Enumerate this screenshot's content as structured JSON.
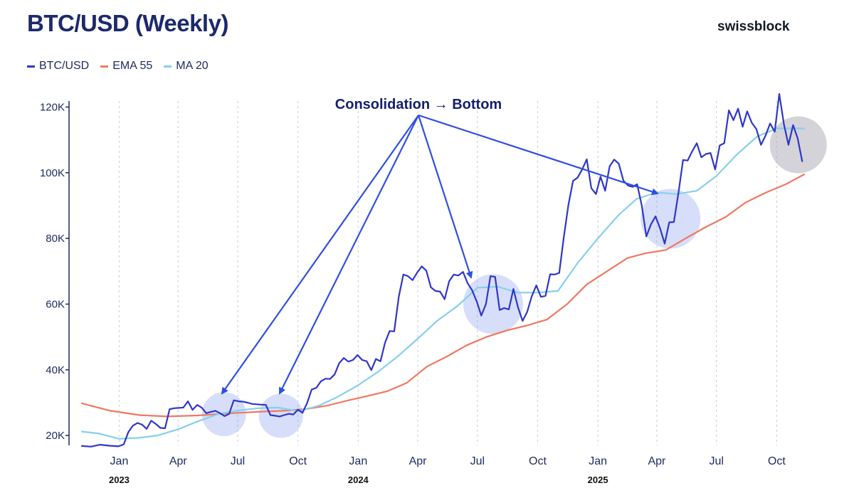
{
  "header": {
    "title": "BTC/USD (Weekly)",
    "brand": "swissblock"
  },
  "legend": [
    {
      "label": "BTC/USD",
      "color": "#2f36c9"
    },
    {
      "label": "EMA 55",
      "color": "#f07860"
    },
    {
      "label": "MA 20",
      "color": "#86cfee"
    }
  ],
  "annotation": {
    "label": "Consolidation → Bottom",
    "targets": [
      "2023-06-10",
      "2023-09-05",
      "2024-07-25",
      "2025-04-22"
    ]
  },
  "chart_data": {
    "type": "line",
    "title": "BTC/USD (Weekly)",
    "xlabel": "",
    "ylabel": "",
    "ylim": [
      17000,
      124000
    ],
    "xlim": [
      "2022-11-05",
      "2025-11-12"
    ],
    "grid": "vertical dashed",
    "legend_position": "top-left",
    "y_ticks": [
      {
        "value": 20000,
        "label": "20K"
      },
      {
        "value": 40000,
        "label": "40K"
      },
      {
        "value": 60000,
        "label": "60K"
      },
      {
        "value": 80000,
        "label": "80K"
      },
      {
        "value": 100000,
        "label": "100K"
      },
      {
        "value": 120000,
        "label": "120K"
      }
    ],
    "x_ticks": [
      {
        "date": "2023-01-01",
        "label": "Jan"
      },
      {
        "date": "2023-04-01",
        "label": "Apr"
      },
      {
        "date": "2023-07-01",
        "label": "Jul"
      },
      {
        "date": "2023-10-01",
        "label": "Oct"
      },
      {
        "date": "2024-01-01",
        "label": "Jan"
      },
      {
        "date": "2024-04-01",
        "label": "Apr"
      },
      {
        "date": "2024-07-01",
        "label": "Jul"
      },
      {
        "date": "2024-10-01",
        "label": "Oct"
      },
      {
        "date": "2025-01-01",
        "label": "Jan"
      },
      {
        "date": "2025-04-01",
        "label": "Apr"
      },
      {
        "date": "2025-07-01",
        "label": "Jul"
      },
      {
        "date": "2025-10-01",
        "label": "Oct"
      }
    ],
    "year_labels": [
      {
        "date": "2023-01-01",
        "label": "2023"
      },
      {
        "date": "2024-01-01",
        "label": "2024"
      },
      {
        "date": "2025-01-01",
        "label": "2025"
      }
    ],
    "series": [
      {
        "name": "BTC/USD",
        "color": "#2f36c9",
        "points": [
          [
            "2022-11-05",
            16800
          ],
          [
            "2022-11-19",
            16600
          ],
          [
            "2022-12-03",
            17200
          ],
          [
            "2022-12-17",
            16900
          ],
          [
            "2022-12-31",
            16700
          ],
          [
            "2023-01-08",
            17300
          ],
          [
            "2023-01-15",
            21000
          ],
          [
            "2023-01-22",
            23000
          ],
          [
            "2023-01-29",
            23800
          ],
          [
            "2023-02-05",
            23300
          ],
          [
            "2023-02-12",
            22000
          ],
          [
            "2023-02-19",
            24500
          ],
          [
            "2023-02-26",
            23500
          ],
          [
            "2023-03-05",
            22300
          ],
          [
            "2023-03-12",
            22200
          ],
          [
            "2023-03-19",
            28000
          ],
          [
            "2023-03-26",
            28300
          ],
          [
            "2023-04-02",
            28400
          ],
          [
            "2023-04-09",
            28500
          ],
          [
            "2023-04-16",
            30400
          ],
          [
            "2023-04-23",
            27800
          ],
          [
            "2023-04-30",
            29300
          ],
          [
            "2023-05-07",
            28500
          ],
          [
            "2023-05-14",
            26800
          ],
          [
            "2023-05-21",
            27200
          ],
          [
            "2023-05-28",
            27500
          ],
          [
            "2023-06-04",
            26800
          ],
          [
            "2023-06-11",
            25900
          ],
          [
            "2023-06-18",
            26600
          ],
          [
            "2023-06-25",
            30700
          ],
          [
            "2023-07-02",
            30400
          ],
          [
            "2023-07-09",
            30300
          ],
          [
            "2023-07-16",
            30000
          ],
          [
            "2023-07-23",
            29600
          ],
          [
            "2023-07-30",
            29500
          ],
          [
            "2023-08-06",
            29400
          ],
          [
            "2023-08-13",
            29300
          ],
          [
            "2023-08-20",
            26200
          ],
          [
            "2023-08-27",
            26000
          ],
          [
            "2023-09-03",
            25800
          ],
          [
            "2023-09-10",
            26200
          ],
          [
            "2023-09-17",
            26600
          ],
          [
            "2023-09-24",
            26400
          ],
          [
            "2023-10-01",
            27900
          ],
          [
            "2023-10-08",
            26900
          ],
          [
            "2023-10-15",
            29900
          ],
          [
            "2023-10-22",
            34000
          ],
          [
            "2023-10-29",
            34500
          ],
          [
            "2023-11-05",
            36500
          ],
          [
            "2023-11-12",
            37300
          ],
          [
            "2023-11-19",
            37200
          ],
          [
            "2023-11-26",
            38600
          ],
          [
            "2023-12-03",
            42000
          ],
          [
            "2023-12-10",
            43600
          ],
          [
            "2023-12-17",
            42500
          ],
          [
            "2023-12-24",
            43000
          ],
          [
            "2023-12-31",
            44500
          ],
          [
            "2024-01-07",
            43000
          ],
          [
            "2024-01-14",
            42600
          ],
          [
            "2024-01-21",
            39900
          ],
          [
            "2024-01-28",
            43300
          ],
          [
            "2024-02-04",
            42600
          ],
          [
            "2024-02-11",
            48300
          ],
          [
            "2024-02-18",
            51800
          ],
          [
            "2024-02-25",
            51700
          ],
          [
            "2024-03-03",
            62300
          ],
          [
            "2024-03-10",
            69000
          ],
          [
            "2024-03-17",
            68500
          ],
          [
            "2024-03-24",
            67300
          ],
          [
            "2024-03-31",
            69600
          ],
          [
            "2024-04-07",
            71500
          ],
          [
            "2024-04-14",
            70200
          ],
          [
            "2024-04-21",
            65100
          ],
          [
            "2024-04-28",
            64000
          ],
          [
            "2024-05-05",
            63800
          ],
          [
            "2024-05-12",
            61500
          ],
          [
            "2024-05-19",
            67000
          ],
          [
            "2024-05-26",
            69000
          ],
          [
            "2024-06-02",
            68700
          ],
          [
            "2024-06-09",
            69800
          ],
          [
            "2024-06-16",
            66400
          ],
          [
            "2024-06-23",
            64200
          ],
          [
            "2024-06-30",
            60800
          ],
          [
            "2024-07-07",
            56500
          ],
          [
            "2024-07-14",
            60000
          ],
          [
            "2024-07-21",
            68500
          ],
          [
            "2024-07-28",
            68300
          ],
          [
            "2024-08-04",
            58200
          ],
          [
            "2024-08-11",
            58800
          ],
          [
            "2024-08-18",
            58400
          ],
          [
            "2024-08-25",
            64600
          ],
          [
            "2024-09-01",
            59000
          ],
          [
            "2024-09-08",
            54900
          ],
          [
            "2024-09-15",
            57600
          ],
          [
            "2024-09-22",
            62400
          ],
          [
            "2024-09-29",
            65700
          ],
          [
            "2024-10-06",
            62200
          ],
          [
            "2024-10-13",
            62500
          ],
          [
            "2024-10-20",
            69100
          ],
          [
            "2024-10-27",
            69000
          ],
          [
            "2024-11-03",
            69500
          ],
          [
            "2024-11-10",
            80500
          ],
          [
            "2024-11-17",
            90200
          ],
          [
            "2024-11-24",
            97500
          ],
          [
            "2024-12-01",
            98500
          ],
          [
            "2024-12-08",
            101000
          ],
          [
            "2024-12-15",
            104100
          ],
          [
            "2024-12-22",
            95300
          ],
          [
            "2024-12-29",
            93500
          ],
          [
            "2025-01-05",
            98800
          ],
          [
            "2025-01-12",
            94500
          ],
          [
            "2025-01-19",
            102000
          ],
          [
            "2025-01-26",
            104000
          ],
          [
            "2025-02-02",
            102700
          ],
          [
            "2025-02-09",
            97600
          ],
          [
            "2025-02-16",
            96100
          ],
          [
            "2025-02-23",
            95700
          ],
          [
            "2025-03-02",
            96500
          ],
          [
            "2025-03-09",
            90000
          ],
          [
            "2025-03-16",
            80600
          ],
          [
            "2025-03-23",
            84300
          ],
          [
            "2025-03-30",
            86700
          ],
          [
            "2025-04-06",
            83000
          ],
          [
            "2025-04-13",
            78400
          ],
          [
            "2025-04-20",
            84900
          ],
          [
            "2025-04-27",
            85000
          ],
          [
            "2025-05-04",
            93800
          ],
          [
            "2025-05-11",
            103900
          ],
          [
            "2025-05-18",
            103700
          ],
          [
            "2025-05-25",
            106500
          ],
          [
            "2025-06-01",
            109000
          ],
          [
            "2025-06-08",
            104700
          ],
          [
            "2025-06-15",
            105700
          ],
          [
            "2025-06-22",
            106000
          ],
          [
            "2025-06-29",
            101000
          ],
          [
            "2025-07-06",
            108300
          ],
          [
            "2025-07-13",
            109000
          ],
          [
            "2025-07-20",
            119000
          ],
          [
            "2025-07-27",
            116000
          ],
          [
            "2025-08-03",
            119500
          ],
          [
            "2025-08-10",
            114000
          ],
          [
            "2025-08-17",
            118700
          ],
          [
            "2025-08-24",
            115200
          ],
          [
            "2025-08-31",
            113300
          ],
          [
            "2025-09-07",
            108500
          ],
          [
            "2025-09-14",
            111300
          ],
          [
            "2025-09-21",
            115000
          ],
          [
            "2025-09-28",
            112500
          ],
          [
            "2025-10-05",
            124000
          ],
          [
            "2025-10-12",
            114800
          ],
          [
            "2025-10-19",
            108500
          ],
          [
            "2025-10-26",
            114500
          ],
          [
            "2025-11-02",
            110500
          ],
          [
            "2025-11-09",
            103500
          ]
        ]
      },
      {
        "name": "EMA 55",
        "color": "#f07860",
        "points": [
          [
            "2022-11-05",
            29800
          ],
          [
            "2022-12-17",
            27600
          ],
          [
            "2023-02-01",
            26200
          ],
          [
            "2023-03-15",
            25800
          ],
          [
            "2023-05-01",
            26100
          ],
          [
            "2023-06-15",
            26700
          ],
          [
            "2023-08-01",
            27200
          ],
          [
            "2023-09-15",
            27600
          ],
          [
            "2023-10-15",
            28100
          ],
          [
            "2023-11-15",
            29100
          ],
          [
            "2023-12-15",
            30600
          ],
          [
            "2024-01-15",
            32000
          ],
          [
            "2024-02-15",
            33500
          ],
          [
            "2024-03-15",
            36000
          ],
          [
            "2024-04-15",
            41000
          ],
          [
            "2024-05-15",
            44000
          ],
          [
            "2024-06-15",
            47500
          ],
          [
            "2024-07-15",
            50000
          ],
          [
            "2024-08-15",
            52000
          ],
          [
            "2024-09-15",
            53500
          ],
          [
            "2024-10-15",
            55300
          ],
          [
            "2024-11-15",
            60000
          ],
          [
            "2024-12-15",
            66000
          ],
          [
            "2025-01-15",
            70000
          ],
          [
            "2025-02-15",
            74000
          ],
          [
            "2025-03-15",
            75500
          ],
          [
            "2025-04-15",
            76500
          ],
          [
            "2025-05-15",
            80000
          ],
          [
            "2025-06-15",
            83500
          ],
          [
            "2025-07-15",
            86500
          ],
          [
            "2025-08-15",
            91000
          ],
          [
            "2025-09-15",
            94000
          ],
          [
            "2025-10-15",
            96500
          ],
          [
            "2025-11-12",
            99500
          ]
        ]
      },
      {
        "name": "MA 20",
        "color": "#86cfee",
        "points": [
          [
            "2022-11-05",
            21200
          ],
          [
            "2022-12-01",
            20600
          ],
          [
            "2023-01-01",
            19000
          ],
          [
            "2023-02-01",
            19300
          ],
          [
            "2023-03-01",
            20000
          ],
          [
            "2023-04-01",
            21900
          ],
          [
            "2023-05-01",
            24300
          ],
          [
            "2023-06-01",
            26500
          ],
          [
            "2023-07-01",
            27600
          ],
          [
            "2023-08-01",
            28300
          ],
          [
            "2023-09-01",
            28500
          ],
          [
            "2023-10-01",
            27400
          ],
          [
            "2023-11-01",
            29000
          ],
          [
            "2023-12-01",
            31800
          ],
          [
            "2024-01-01",
            35300
          ],
          [
            "2024-02-01",
            39500
          ],
          [
            "2024-03-01",
            44000
          ],
          [
            "2024-04-01",
            49500
          ],
          [
            "2024-05-01",
            55000
          ],
          [
            "2024-06-01",
            59500
          ],
          [
            "2024-07-01",
            65000
          ],
          [
            "2024-08-01",
            65300
          ],
          [
            "2024-09-01",
            63500
          ],
          [
            "2024-10-01",
            63500
          ],
          [
            "2024-11-01",
            64000
          ],
          [
            "2024-12-01",
            72500
          ],
          [
            "2025-01-01",
            80000
          ],
          [
            "2025-02-01",
            87000
          ],
          [
            "2025-03-01",
            92000
          ],
          [
            "2025-04-01",
            94000
          ],
          [
            "2025-05-01",
            93500
          ],
          [
            "2025-06-01",
            94500
          ],
          [
            "2025-07-01",
            99000
          ],
          [
            "2025-08-01",
            105500
          ],
          [
            "2025-09-01",
            111000
          ],
          [
            "2025-10-01",
            113500
          ],
          [
            "2025-11-12",
            113500
          ]
        ]
      }
    ],
    "highlights": [
      {
        "center": [
          "2023-06-10",
          26500
        ],
        "tone": "blue"
      },
      {
        "center": [
          "2023-09-05",
          26000
        ],
        "tone": "blue"
      },
      {
        "center": [
          "2024-07-25",
          60000
        ],
        "tone": "blue"
      },
      {
        "center": [
          "2025-04-22",
          86000
        ],
        "tone": "blue"
      },
      {
        "center": [
          "2025-11-03",
          108500
        ],
        "tone": "grey"
      }
    ]
  }
}
